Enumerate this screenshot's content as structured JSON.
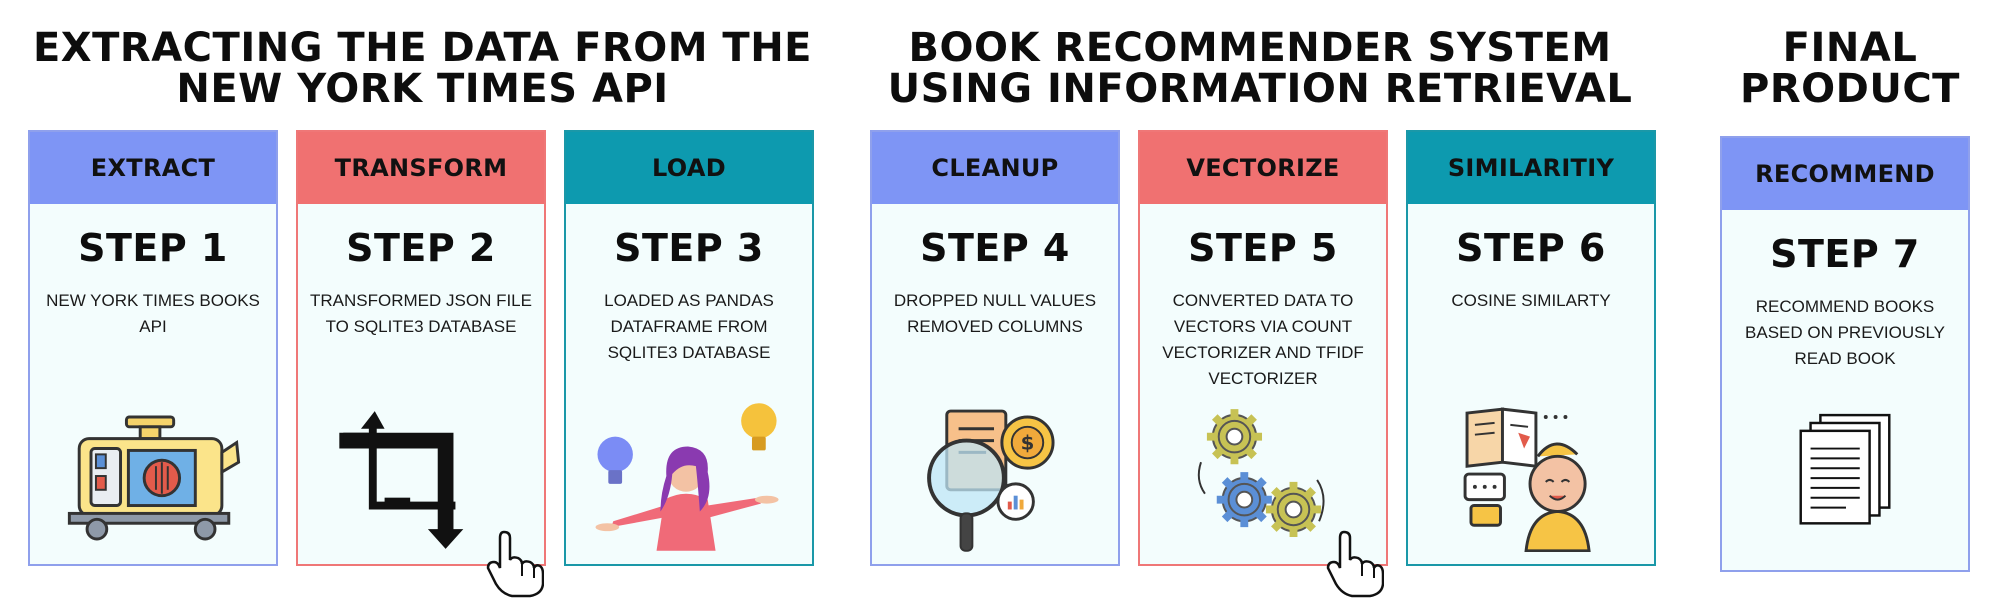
{
  "sections": [
    {
      "title": "EXTRACTING THE DATA FROM THE NEW YORK TIMES API"
    },
    {
      "title": "BOOK RECOMMENDER SYSTEM USING INFORMATION RETRIEVAL"
    },
    {
      "title": "FINAL PRODUCT"
    }
  ],
  "cards": [
    {
      "header": "EXTRACT",
      "step": "STEP 1",
      "desc": "NEW YORK TIMES BOOKS API",
      "color": "#7e95f5",
      "icon": "generator-icon"
    },
    {
      "header": "TRANSFORM",
      "step": "STEP 2",
      "desc": "TRANSFORMED JSON FILE TO SQLITE3 DATABASE",
      "color": "#f07171",
      "icon": "crop-transform-icon"
    },
    {
      "header": "LOAD",
      "step": "STEP 3",
      "desc": "LOADED AS PANDAS DATAFRAME FROM SQLITE3 DATABASE",
      "color": "#0d9aaf",
      "icon": "person-ideas-icon"
    },
    {
      "header": "CLEANUP",
      "step": "STEP 4",
      "desc": "DROPPED NULL VALUES REMOVED COLUMNS",
      "color": "#7e95f5",
      "icon": "magnifier-document-icon"
    },
    {
      "header": "VECTORIZE",
      "step": "STEP 5",
      "desc": "CONVERTED DATA TO VECTORS VIA COUNT VECTORIZER AND TFIDF VECTORIZER",
      "color": "#f07171",
      "icon": "gears-icon"
    },
    {
      "header": "SIMILARITIY",
      "step": "STEP 6",
      "desc": "COSINE SIMILARTY",
      "color": "#0d9aaf",
      "icon": "reader-thinking-icon"
    },
    {
      "header": "RECOMMEND",
      "step": "STEP 7",
      "desc": "RECOMMEND BOOKS BASED ON PREVIOUSLY READ BOOK",
      "color": "#7e95f5",
      "icon": "documents-stack-icon"
    }
  ]
}
